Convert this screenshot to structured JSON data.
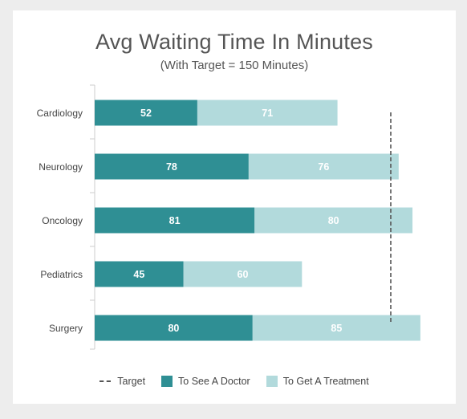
{
  "chart_data": {
    "type": "bar",
    "orientation": "horizontal",
    "stacked": true,
    "title": "Avg Waiting Time In Minutes",
    "subtitle": "(With Target = 150 Minutes)",
    "categories": [
      "Cardiology",
      "Neurology",
      "Oncology",
      "Pediatrics",
      "Surgery"
    ],
    "series": [
      {
        "name": "To See A Doctor",
        "values": [
          52,
          78,
          81,
          45,
          80
        ],
        "color": "#2f8f94"
      },
      {
        "name": "To Get A Treatment",
        "values": [
          71,
          76,
          80,
          60,
          85
        ],
        "color": "#b2dadc"
      }
    ],
    "target": {
      "name": "Target",
      "value": 150
    },
    "xlim": [
      0,
      170
    ],
    "grid": false,
    "legend_position": "bottom"
  },
  "legend": {
    "target_label": "Target",
    "series_0_label": "To See A Doctor",
    "series_1_label": "To Get A Treatment"
  }
}
